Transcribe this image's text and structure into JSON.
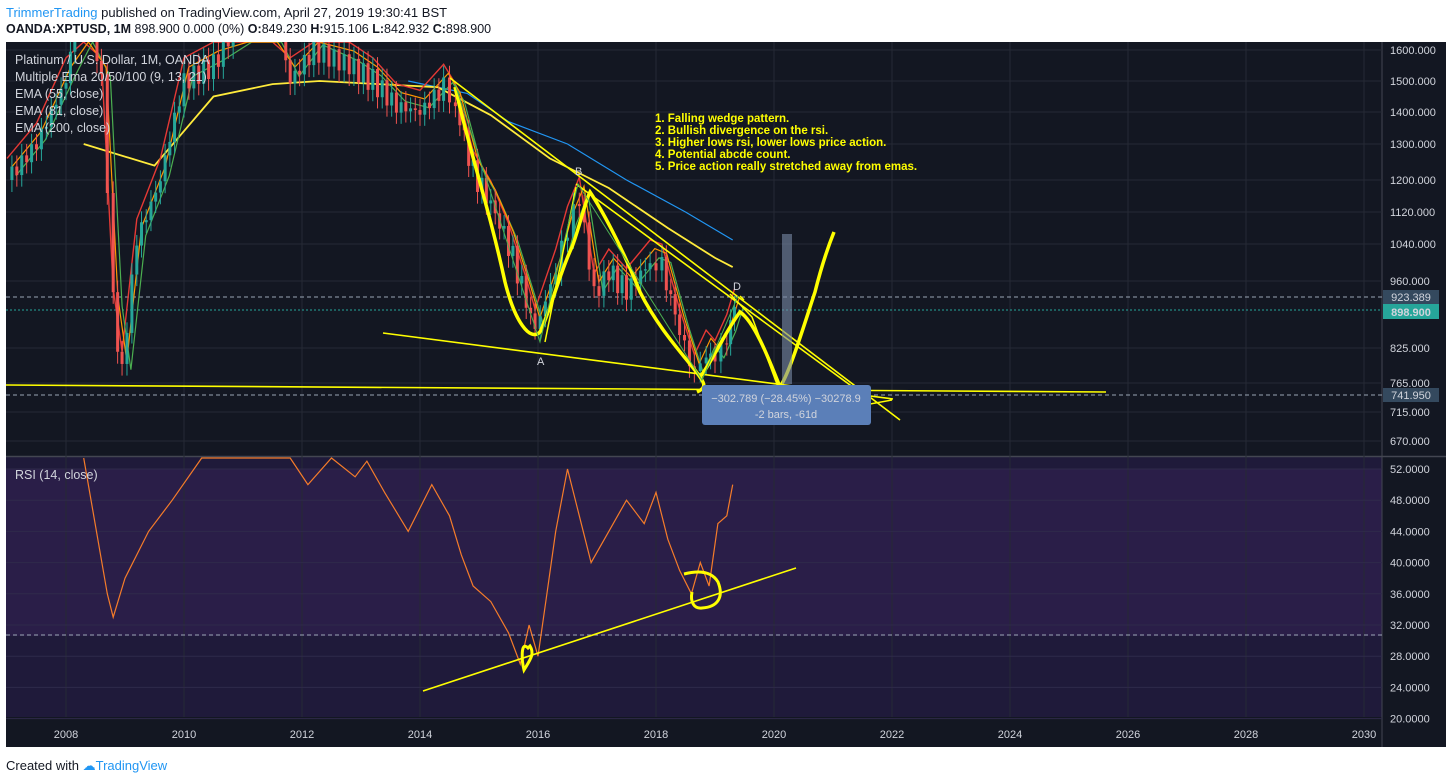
{
  "header": {
    "author": "TrimmerTrading",
    "published": "published on TradingView.com, April 27, 2019 19:30:41 BST",
    "symbol": "OANDA:XPTUSD, 1M",
    "ohlc": "898.900 0.000 (0%)",
    "open_label": "O:",
    "open": "849.230",
    "high_label": "H:",
    "high": "915.106",
    "low_label": "L:",
    "low": "842.932",
    "close_label": "C:",
    "close": "898.900"
  },
  "legend": {
    "title": "Platinum / U.S. Dollar, 1M, OANDA",
    "items": [
      "Multiple Ema 20/50/100 (9, 13, 21)",
      "EMA (55, close)",
      "EMA (81, close)",
      "EMA (200, close)"
    ]
  },
  "annotations": {
    "notes": [
      "1. Falling wedge pattern.",
      "2. Bullish divergence on the rsi.",
      "3. Higher lows rsi, lower lows price action.",
      "4. Potential abcde count.",
      "5. Price action really stretched away from emas."
    ],
    "wave_labels": [
      "A",
      "B",
      "D"
    ],
    "measure_line1": "−302.789 (−28.45%) −30278.9",
    "measure_line2": "-2 bars, -61d"
  },
  "price_labels": {
    "level_high": "923.389",
    "level_last": "898.900",
    "level_low": "741.950"
  },
  "rsi_title": "RSI (14, close)",
  "footer": {
    "created_with": "Created with",
    "brand": "TradingView"
  },
  "colors": {
    "background": "#131722",
    "rsi_band": "#2a1e48",
    "price_up": "#26a69a",
    "price_down": "#ef5350",
    "ema_yellow": "#ffeb3b",
    "ema_blue": "#2196f3",
    "ema_red": "#e53935",
    "rsi_line": "#f57c2a",
    "drawing": "#ffff00",
    "measure_box": "#5b7fb8"
  },
  "chart_data": {
    "type": "line",
    "title": "Platinum / U.S. Dollar, 1M, OANDA",
    "price_axis": {
      "ticks": [
        1600,
        1500,
        1400,
        1300,
        1200,
        1120,
        1040,
        960,
        825,
        765,
        715,
        670
      ],
      "tick_labels": [
        "1600.000",
        "1500.000",
        "1400.000",
        "1300.000",
        "1200.000",
        "1120.000",
        "1040.000",
        "960.000",
        "825.000",
        "765.000",
        "715.000",
        "670.000"
      ]
    },
    "rsi_axis": {
      "ticks": [
        52,
        48,
        44,
        40,
        36,
        32,
        28,
        24,
        20
      ],
      "tick_labels": [
        "52.0000",
        "48.0000",
        "44.0000",
        "40.0000",
        "36.0000",
        "32.0000",
        "28.0000",
        "24.0000",
        "20.0000"
      ]
    },
    "x_axis": {
      "ticks": [
        2008,
        2010,
        2012,
        2014,
        2016,
        2018,
        2020,
        2022,
        2024,
        2026,
        2028,
        2030
      ],
      "tick_labels": [
        "2008",
        "2010",
        "2012",
        "2014",
        "2016",
        "2018",
        "2020",
        "2022",
        "2024",
        "2026",
        "2028",
        "2030"
      ]
    },
    "series": [
      {
        "name": "Platinum close (approx.)",
        "points": [
          [
            2007.0,
            1200
          ],
          [
            2007.5,
            1300
          ],
          [
            2008.0,
            1500
          ],
          [
            2008.3,
            1900
          ],
          [
            2008.6,
            1500
          ],
          [
            2008.8,
            900
          ],
          [
            2008.95,
            780
          ],
          [
            2009.2,
            1050
          ],
          [
            2009.6,
            1200
          ],
          [
            2010.0,
            1500
          ],
          [
            2010.5,
            1550
          ],
          [
            2011.0,
            1750
          ],
          [
            2011.5,
            1800
          ],
          [
            2011.8,
            1500
          ],
          [
            2012.2,
            1600
          ],
          [
            2012.8,
            1550
          ],
          [
            2013.2,
            1500
          ],
          [
            2013.6,
            1420
          ],
          [
            2014.0,
            1400
          ],
          [
            2014.4,
            1480
          ],
          [
            2014.6,
            1420
          ],
          [
            2014.9,
            1220
          ],
          [
            2015.2,
            1140
          ],
          [
            2015.5,
            1040
          ],
          [
            2015.8,
            920
          ],
          [
            2015.95,
            860
          ],
          [
            2016.3,
            980
          ],
          [
            2016.5,
            1080
          ],
          [
            2016.7,
            1150
          ],
          [
            2016.95,
            930
          ],
          [
            2017.2,
            980
          ],
          [
            2017.5,
            940
          ],
          [
            2017.9,
            1000
          ],
          [
            2018.1,
            990
          ],
          [
            2018.4,
            860
          ],
          [
            2018.65,
            775
          ],
          [
            2018.85,
            820
          ],
          [
            2019.0,
            800
          ],
          [
            2019.2,
            850
          ],
          [
            2019.33,
            898.9
          ]
        ]
      },
      {
        "name": "EMA (200, close)",
        "points": [
          [
            2013.8,
            1500
          ],
          [
            2014.8,
            1460
          ],
          [
            2015.5,
            1370
          ],
          [
            2016.5,
            1300
          ],
          [
            2017.5,
            1200
          ],
          [
            2018.5,
            1120
          ],
          [
            2019.3,
            1050
          ]
        ]
      },
      {
        "name": "EMA (81, close)",
        "points": [
          [
            2008.3,
            1300
          ],
          [
            2009.5,
            1240
          ],
          [
            2010.5,
            1450
          ],
          [
            2011.5,
            1490
          ],
          [
            2012.3,
            1500
          ],
          [
            2013.3,
            1490
          ],
          [
            2014.3,
            1480
          ],
          [
            2015.2,
            1390
          ],
          [
            2016.2,
            1260
          ],
          [
            2017.2,
            1180
          ],
          [
            2018.2,
            1080
          ],
          [
            2019.0,
            1010
          ],
          [
            2019.3,
            990
          ]
        ]
      }
    ],
    "rsi_series": {
      "name": "RSI (14, close)",
      "points": [
        [
          2008.3,
          68
        ],
        [
          2008.7,
          36
        ],
        [
          2008.8,
          33
        ],
        [
          2009.0,
          38
        ],
        [
          2009.4,
          44
        ],
        [
          2009.8,
          48
        ],
        [
          2010.3,
          56
        ],
        [
          2011.8,
          55
        ],
        [
          2012.1,
          50
        ],
        [
          2012.5,
          55
        ],
        [
          2012.9,
          51
        ],
        [
          2013.1,
          53
        ],
        [
          2013.4,
          49
        ],
        [
          2013.8,
          44
        ],
        [
          2014.2,
          50
        ],
        [
          2014.5,
          46
        ],
        [
          2014.7,
          41
        ],
        [
          2014.9,
          37
        ],
        [
          2015.2,
          35
        ],
        [
          2015.5,
          31
        ],
        [
          2015.7,
          27
        ],
        [
          2015.85,
          32
        ],
        [
          2016.0,
          28
        ],
        [
          2016.15,
          36
        ],
        [
          2016.3,
          44
        ],
        [
          2016.5,
          52
        ],
        [
          2016.7,
          46
        ],
        [
          2016.9,
          40
        ],
        [
          2017.2,
          44
        ],
        [
          2017.5,
          48
        ],
        [
          2017.8,
          45
        ],
        [
          2018.0,
          49
        ],
        [
          2018.2,
          43
        ],
        [
          2018.4,
          39
        ],
        [
          2018.6,
          36
        ],
        [
          2018.75,
          40
        ],
        [
          2018.9,
          37
        ],
        [
          2019.05,
          45
        ],
        [
          2019.2,
          46
        ],
        [
          2019.3,
          50
        ]
      ]
    }
  }
}
